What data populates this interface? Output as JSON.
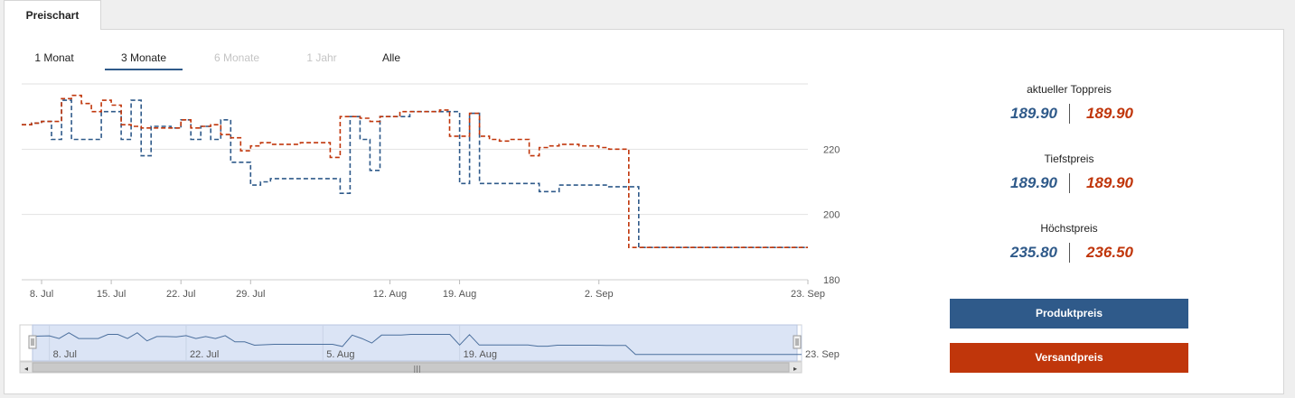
{
  "tabs": [
    {
      "label": "Preischart"
    }
  ],
  "ranges": [
    {
      "label": "1 Monat",
      "state": "normal"
    },
    {
      "label": "3 Monate",
      "state": "active"
    },
    {
      "label": "6 Monate",
      "state": "disabled"
    },
    {
      "label": "1 Jahr",
      "state": "disabled"
    },
    {
      "label": "Alle",
      "state": "normal"
    }
  ],
  "stats": [
    {
      "label": "aktueller Toppreis",
      "produkt": "189.90",
      "versand": "189.90"
    },
    {
      "label": "Tiefstpreis",
      "produkt": "189.90",
      "versand": "189.90"
    },
    {
      "label": "Höchstpreis",
      "produkt": "235.80",
      "versand": "236.50"
    }
  ],
  "legend": {
    "produkt": "Produktpreis",
    "versand": "Versandpreis"
  },
  "colors": {
    "produkt": "#2f5a8a",
    "versand": "#c0360b",
    "navigator_fill": "#dbe4f5"
  },
  "chart_data": {
    "type": "line",
    "step": true,
    "dashed": true,
    "grid": true,
    "x_start": "2024-07-06",
    "x_end": "2024-09-23",
    "xticks": [
      {
        "date": "2024-07-08",
        "label": "8. Jul"
      },
      {
        "date": "2024-07-15",
        "label": "15. Jul"
      },
      {
        "date": "2024-07-22",
        "label": "22. Jul"
      },
      {
        "date": "2024-07-29",
        "label": "29. Jul"
      },
      {
        "date": "2024-08-12",
        "label": "12. Aug"
      },
      {
        "date": "2024-08-19",
        "label": "19. Aug"
      },
      {
        "date": "2024-09-02",
        "label": "2. Sep"
      },
      {
        "date": "2024-09-23",
        "label": "23. Sep"
      }
    ],
    "yticks": [
      180,
      200,
      220
    ],
    "ylim": [
      180,
      240
    ],
    "series": [
      {
        "name": "Produktpreis",
        "points": [
          [
            "2024-07-06",
            227.5
          ],
          [
            "2024-07-07",
            228
          ],
          [
            "2024-07-08",
            228.5
          ],
          [
            "2024-07-09",
            223
          ],
          [
            "2024-07-10",
            235
          ],
          [
            "2024-07-11",
            223
          ],
          [
            "2024-07-12",
            223
          ],
          [
            "2024-07-13",
            223
          ],
          [
            "2024-07-14",
            231.5
          ],
          [
            "2024-07-15",
            231.5
          ],
          [
            "2024-07-16",
            223
          ],
          [
            "2024-07-17",
            235
          ],
          [
            "2024-07-18",
            218
          ],
          [
            "2024-07-19",
            227
          ],
          [
            "2024-07-20",
            227
          ],
          [
            "2024-07-21",
            226.5
          ],
          [
            "2024-07-22",
            229
          ],
          [
            "2024-07-23",
            223
          ],
          [
            "2024-07-24",
            227
          ],
          [
            "2024-07-25",
            223
          ],
          [
            "2024-07-26",
            229
          ],
          [
            "2024-07-27",
            216
          ],
          [
            "2024-07-28",
            216
          ],
          [
            "2024-07-29",
            209
          ],
          [
            "2024-07-30",
            210
          ],
          [
            "2024-07-31",
            211
          ],
          [
            "2024-08-01",
            211
          ],
          [
            "2024-08-02",
            211
          ],
          [
            "2024-08-03",
            211
          ],
          [
            "2024-08-04",
            211
          ],
          [
            "2024-08-05",
            211
          ],
          [
            "2024-08-06",
            211
          ],
          [
            "2024-08-07",
            206.5
          ],
          [
            "2024-08-08",
            230
          ],
          [
            "2024-08-09",
            223
          ],
          [
            "2024-08-10",
            213.5
          ],
          [
            "2024-08-11",
            230
          ],
          [
            "2024-08-12",
            230
          ],
          [
            "2024-08-13",
            230
          ],
          [
            "2024-08-14",
            231.5
          ],
          [
            "2024-08-15",
            231.5
          ],
          [
            "2024-08-16",
            231.5
          ],
          [
            "2024-08-17",
            231.5
          ],
          [
            "2024-08-18",
            231.5
          ],
          [
            "2024-08-19",
            209.5
          ],
          [
            "2024-08-20",
            231
          ],
          [
            "2024-08-21",
            209.5
          ],
          [
            "2024-08-22",
            209.5
          ],
          [
            "2024-08-23",
            209.5
          ],
          [
            "2024-08-24",
            209.5
          ],
          [
            "2024-08-25",
            209.5
          ],
          [
            "2024-08-26",
            209.5
          ],
          [
            "2024-08-27",
            207
          ],
          [
            "2024-08-28",
            207
          ],
          [
            "2024-08-29",
            209
          ],
          [
            "2024-08-30",
            209
          ],
          [
            "2024-08-31",
            209
          ],
          [
            "2024-09-01",
            209
          ],
          [
            "2024-09-02",
            209
          ],
          [
            "2024-09-03",
            208.5
          ],
          [
            "2024-09-04",
            208.5
          ],
          [
            "2024-09-05",
            208.5
          ],
          [
            "2024-09-06",
            189.9
          ],
          [
            "2024-09-23",
            189.9
          ]
        ]
      },
      {
        "name": "Versandpreis",
        "points": [
          [
            "2024-07-06",
            227.5
          ],
          [
            "2024-07-07",
            228
          ],
          [
            "2024-07-08",
            228.5
          ],
          [
            "2024-07-09",
            228.5
          ],
          [
            "2024-07-10",
            235.5
          ],
          [
            "2024-07-11",
            236.5
          ],
          [
            "2024-07-12",
            234
          ],
          [
            "2024-07-13",
            231.5
          ],
          [
            "2024-07-14",
            235
          ],
          [
            "2024-07-15",
            233.5
          ],
          [
            "2024-07-16",
            227.5
          ],
          [
            "2024-07-17",
            227
          ],
          [
            "2024-07-18",
            226.5
          ],
          [
            "2024-07-19",
            226.5
          ],
          [
            "2024-07-20",
            226.5
          ],
          [
            "2024-07-21",
            226.5
          ],
          [
            "2024-07-22",
            229
          ],
          [
            "2024-07-23",
            226.5
          ],
          [
            "2024-07-24",
            227
          ],
          [
            "2024-07-25",
            227.5
          ],
          [
            "2024-07-26",
            224.5
          ],
          [
            "2024-07-27",
            223.5
          ],
          [
            "2024-07-28",
            219.5
          ],
          [
            "2024-07-29",
            221
          ],
          [
            "2024-07-30",
            222
          ],
          [
            "2024-07-31",
            221.5
          ],
          [
            "2024-08-01",
            221.5
          ],
          [
            "2024-08-02",
            221.5
          ],
          [
            "2024-08-03",
            222
          ],
          [
            "2024-08-04",
            222
          ],
          [
            "2024-08-05",
            222
          ],
          [
            "2024-08-06",
            217.5
          ],
          [
            "2024-08-07",
            230
          ],
          [
            "2024-08-08",
            230
          ],
          [
            "2024-08-09",
            229.5
          ],
          [
            "2024-08-10",
            228.5
          ],
          [
            "2024-08-11",
            230
          ],
          [
            "2024-08-12",
            230
          ],
          [
            "2024-08-13",
            231.5
          ],
          [
            "2024-08-14",
            231.5
          ],
          [
            "2024-08-15",
            231.5
          ],
          [
            "2024-08-16",
            231.5
          ],
          [
            "2024-08-17",
            232
          ],
          [
            "2024-08-18",
            224
          ],
          [
            "2024-08-19",
            224
          ],
          [
            "2024-08-20",
            231
          ],
          [
            "2024-08-21",
            224
          ],
          [
            "2024-08-22",
            223
          ],
          [
            "2024-08-23",
            222.5
          ],
          [
            "2024-08-24",
            223
          ],
          [
            "2024-08-25",
            223
          ],
          [
            "2024-08-26",
            218
          ],
          [
            "2024-08-27",
            220.5
          ],
          [
            "2024-08-28",
            221
          ],
          [
            "2024-08-29",
            221.5
          ],
          [
            "2024-08-30",
            221.5
          ],
          [
            "2024-08-31",
            221
          ],
          [
            "2024-09-01",
            221
          ],
          [
            "2024-09-02",
            220.5
          ],
          [
            "2024-09-03",
            220
          ],
          [
            "2024-09-04",
            220
          ],
          [
            "2024-09-05",
            189.9
          ],
          [
            "2024-09-23",
            189.9
          ]
        ]
      }
    ],
    "navigator": {
      "xticks": [
        {
          "date": "2024-07-08",
          "label": "8. Jul"
        },
        {
          "date": "2024-07-22",
          "label": "22. Jul"
        },
        {
          "date": "2024-08-05",
          "label": "5. Aug"
        },
        {
          "date": "2024-08-19",
          "label": "19. Aug"
        },
        {
          "date": "2024-09-23",
          "label": "23. Sep"
        }
      ]
    }
  }
}
